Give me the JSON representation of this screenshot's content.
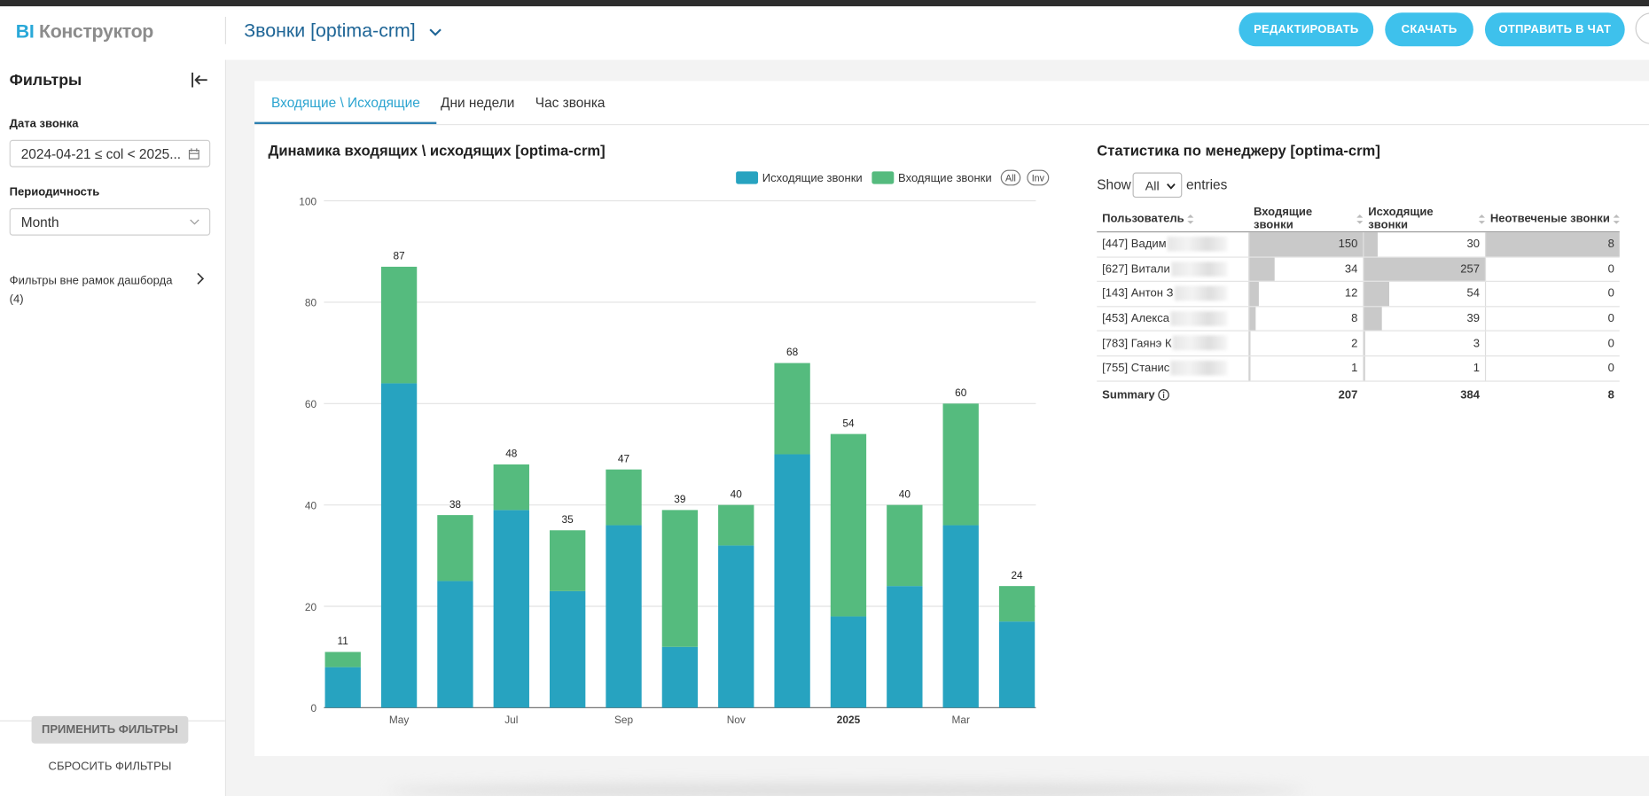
{
  "header": {
    "logo_prefix": "BI",
    "logo": "Конструктор",
    "dashboard_title": "Звонки [optima-crm]",
    "buttons": [
      "РЕДАКТИРОВАТЬ",
      "СКАЧАТЬ",
      "ОТПРАВИТЬ В ЧАТ"
    ]
  },
  "sidebar": {
    "title": "Фильтры",
    "filters": [
      {
        "label": "Дата звонка",
        "value": "2024-04-21 ≤ col < 2025..."
      },
      {
        "label": "Периодичность",
        "value": "Month"
      }
    ],
    "outside_filters": "Фильтры вне рамок дашборда",
    "outside_count": "(4)",
    "apply": "ПРИМЕНИТЬ ФИЛЬТРЫ",
    "reset": "СБРОСИТЬ ФИЛЬТРЫ"
  },
  "tabs": {
    "items": [
      "Входящие \\ Исходящие",
      "Дни недели",
      "Час звонка"
    ],
    "active": 0
  },
  "chart_data": {
    "type": "bar",
    "stacked": true,
    "title": "Динамика входящих \\ исходящих [optima-crm]",
    "categories": [
      null,
      "May",
      null,
      "Jul",
      null,
      "Sep",
      null,
      "Nov",
      null,
      "2025",
      null,
      "Mar",
      null
    ],
    "series": [
      {
        "name": "Исходящие звонки",
        "color": "#27a3c0",
        "values": [
          8,
          64,
          25,
          39,
          23,
          36,
          12,
          32,
          50,
          18,
          24,
          36,
          17
        ]
      },
      {
        "name": "Входящие звонки",
        "color": "#55bb7e",
        "values": [
          3,
          23,
          13,
          9,
          12,
          11,
          27,
          8,
          18,
          36,
          16,
          24,
          7
        ]
      }
    ],
    "totals": [
      11,
      87,
      38,
      48,
      35,
      47,
      39,
      40,
      68,
      54,
      40,
      60,
      24
    ],
    "ylim": [
      0,
      100
    ],
    "yticks": [
      0,
      20,
      40,
      60,
      80,
      100
    ],
    "grid": true,
    "legend": "top-right",
    "legend_buttons": [
      "All",
      "Inv"
    ]
  },
  "table": {
    "title": "Статистика по менеджеру [optima-crm]",
    "show_label": "Show",
    "page_size": "All",
    "entries_label": "entries",
    "columns": [
      "Пользователь",
      "Входящие звонки",
      "Исходящие звонки",
      "Неотвеченые звонки"
    ],
    "rows": [
      [
        "[447] Вадим",
        150,
        30,
        8
      ],
      [
        "[627] Витали",
        34,
        257,
        0
      ],
      [
        "[143] Антон З",
        12,
        54,
        0
      ],
      [
        "[453] Алекса",
        8,
        39,
        0
      ],
      [
        "[783] Гаянэ К",
        2,
        3,
        0
      ],
      [
        "[755] Станис",
        1,
        1,
        0
      ]
    ],
    "summary_label": "Summary",
    "summary": [
      207,
      384,
      8
    ]
  }
}
